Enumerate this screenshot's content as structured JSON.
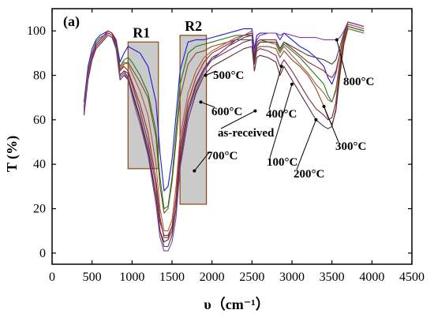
{
  "chart_data": {
    "type": "line",
    "panel_label": "(a)",
    "xlabel": "υ（cm⁻¹）",
    "ylabel": "T (%)",
    "xlim": [
      0,
      4500
    ],
    "ylim": [
      -5,
      110
    ],
    "xticks": [
      0,
      500,
      1000,
      1500,
      2000,
      2500,
      3000,
      3500,
      4000,
      4500
    ],
    "yticks": [
      0,
      20,
      40,
      60,
      80,
      100
    ],
    "grid": false,
    "regions": [
      {
        "label": "R1",
        "x": [
          950,
          1330
        ],
        "y": [
          38,
          95
        ]
      },
      {
        "label": "R2",
        "x": [
          1600,
          1930
        ],
        "y": [
          22,
          98
        ]
      }
    ],
    "series": [
      {
        "name": "as-received",
        "color": "#1b1bd6",
        "x": [
          400,
          450,
          500,
          550,
          600,
          650,
          700,
          750,
          800,
          850,
          900,
          950,
          1000,
          1050,
          1100,
          1200,
          1300,
          1350,
          1400,
          1450,
          1500,
          1550,
          1600,
          1700,
          1800,
          1900,
          2000,
          2100,
          2200,
          2300,
          2400,
          2500,
          2530,
          2560,
          2600,
          2700,
          2800,
          2850,
          2900,
          3000,
          3100,
          3200,
          3300,
          3400,
          3450,
          3500,
          3550,
          3600,
          3650,
          3700,
          3800,
          3900
        ],
        "y": [
          68,
          84,
          92,
          96,
          98,
          99,
          100,
          99,
          96,
          86,
          90,
          93,
          92,
          91,
          90,
          84,
          68,
          45,
          28,
          30,
          42,
          62,
          82,
          95,
          96,
          96,
          97,
          98,
          99,
          100,
          101,
          101,
          92,
          98,
          99,
          99,
          99,
          96,
          99,
          96,
          93,
          91,
          88,
          84,
          79,
          76,
          81,
          90,
          98,
          102,
          101,
          100
        ]
      },
      {
        "name": "100°C",
        "color": "#8a4a1e",
        "x": [
          400,
          450,
          500,
          550,
          600,
          650,
          700,
          750,
          800,
          850,
          900,
          950,
          1000,
          1050,
          1100,
          1200,
          1300,
          1350,
          1400,
          1450,
          1500,
          1550,
          1600,
          1700,
          1800,
          1900,
          2000,
          2100,
          2200,
          2300,
          2400,
          2500,
          2530,
          2560,
          2600,
          2700,
          2800,
          2850,
          2900,
          3000,
          3100,
          3200,
          3300,
          3400,
          3450,
          3500,
          3550,
          3600,
          3650,
          3700,
          3800,
          3900
        ],
        "y": [
          64,
          80,
          89,
          93,
          95,
          97,
          99,
          98,
          94,
          82,
          85,
          86,
          83,
          80,
          77,
          70,
          52,
          30,
          18,
          20,
          32,
          50,
          70,
          85,
          90,
          91,
          93,
          94,
          95,
          96,
          96,
          96,
          86,
          92,
          93,
          93,
          92,
          88,
          91,
          87,
          84,
          80,
          74,
          66,
          61,
          58,
          64,
          80,
          94,
          101,
          100,
          99
        ]
      },
      {
        "name": "200°C",
        "color": "#5a2e2e",
        "x": [
          400,
          450,
          500,
          550,
          600,
          650,
          700,
          750,
          800,
          850,
          900,
          950,
          1000,
          1050,
          1100,
          1200,
          1300,
          1350,
          1400,
          1450,
          1500,
          1550,
          1600,
          1700,
          1800,
          1900,
          2000,
          2100,
          2200,
          2300,
          2400,
          2500,
          2530,
          2560,
          2600,
          2700,
          2800,
          2850,
          2900,
          3000,
          3100,
          3200,
          3300,
          3400,
          3450,
          3500,
          3550,
          3600,
          3650,
          3700,
          3800,
          3900
        ],
        "y": [
          62,
          78,
          87,
          92,
          94,
          96,
          98,
          97,
          92,
          78,
          80,
          78,
          72,
          66,
          60,
          45,
          25,
          10,
          5,
          6,
          10,
          20,
          40,
          60,
          72,
          80,
          84,
          86,
          88,
          90,
          92,
          93,
          82,
          88,
          89,
          88,
          86,
          80,
          84,
          78,
          72,
          66,
          60,
          57,
          56,
          57,
          65,
          82,
          95,
          102,
          101,
          100
        ]
      },
      {
        "name": "300°C",
        "color": "#7a2a4a",
        "x": [
          400,
          450,
          500,
          550,
          600,
          650,
          700,
          750,
          800,
          850,
          900,
          950,
          1000,
          1050,
          1100,
          1200,
          1300,
          1350,
          1400,
          1450,
          1500,
          1550,
          1600,
          1700,
          1800,
          1900,
          2000,
          2100,
          2200,
          2300,
          2400,
          2500,
          2530,
          2560,
          2600,
          2700,
          2800,
          2850,
          2900,
          3000,
          3100,
          3200,
          3300,
          3400,
          3450,
          3500,
          3550,
          3600,
          3650,
          3700,
          3800,
          3900
        ],
        "y": [
          63,
          79,
          88,
          93,
          95,
          97,
          99,
          98,
          93,
          80,
          82,
          81,
          76,
          70,
          64,
          50,
          30,
          14,
          8,
          8,
          12,
          24,
          45,
          65,
          76,
          83,
          87,
          89,
          91,
          93,
          95,
          96,
          85,
          91,
          92,
          91,
          89,
          84,
          87,
          82,
          76,
          70,
          65,
          62,
          60,
          61,
          68,
          84,
          96,
          103,
          102,
          101
        ]
      },
      {
        "name": "400°C",
        "color": "#1f7a1f",
        "x": [
          400,
          450,
          500,
          550,
          600,
          650,
          700,
          750,
          800,
          850,
          900,
          950,
          1000,
          1050,
          1100,
          1200,
          1300,
          1350,
          1400,
          1450,
          1500,
          1550,
          1600,
          1700,
          1800,
          1900,
          2000,
          2100,
          2200,
          2300,
          2400,
          2500,
          2530,
          2560,
          2600,
          2700,
          2800,
          2850,
          2900,
          3000,
          3100,
          3200,
          3300,
          3400,
          3450,
          3500,
          3550,
          3600,
          3650,
          3700,
          3800,
          3900
        ],
        "y": [
          66,
          82,
          90,
          95,
          97,
          98,
          100,
          99,
          95,
          84,
          87,
          88,
          86,
          83,
          80,
          72,
          55,
          34,
          20,
          21,
          34,
          55,
          76,
          90,
          93,
          94,
          95,
          96,
          97,
          98,
          98,
          98,
          89,
          95,
          96,
          95,
          94,
          91,
          94,
          91,
          88,
          84,
          80,
          76,
          71,
          68,
          73,
          86,
          97,
          102,
          101,
          100
        ]
      },
      {
        "name": "500°C",
        "color": "#a06040",
        "x": [
          400,
          450,
          500,
          550,
          600,
          650,
          700,
          750,
          800,
          850,
          900,
          950,
          1000,
          1050,
          1100,
          1200,
          1300,
          1350,
          1400,
          1450,
          1500,
          1550,
          1600,
          1700,
          1800,
          1900,
          2000,
          2100,
          2200,
          2300,
          2400,
          2500,
          2530,
          2560,
          2600,
          2700,
          2800,
          2850,
          2900,
          3000,
          3100,
          3200,
          3300,
          3400,
          3450,
          3500,
          3550,
          3600,
          3650,
          3700,
          3800,
          3900
        ],
        "y": [
          65,
          81,
          90,
          94,
          96,
          98,
          99,
          98,
          94,
          83,
          86,
          85,
          81,
          77,
          73,
          62,
          40,
          20,
          10,
          10,
          15,
          30,
          52,
          72,
          82,
          88,
          91,
          93,
          95,
          97,
          98,
          99,
          88,
          94,
          95,
          95,
          94,
          90,
          93,
          89,
          85,
          81,
          76,
          72,
          69,
          68,
          74,
          87,
          97,
          103,
          102,
          101
        ]
      },
      {
        "name": "600°C",
        "color": "#b02020",
        "x": [
          400,
          450,
          500,
          550,
          600,
          650,
          700,
          750,
          800,
          850,
          900,
          950,
          1000,
          1050,
          1100,
          1200,
          1300,
          1350,
          1400,
          1450,
          1500,
          1550,
          1600,
          1700,
          1800,
          1900,
          2000,
          2100,
          2200,
          2300,
          2400,
          2500,
          2530,
          2560,
          2600,
          2700,
          2800,
          2850,
          2900,
          3000,
          3100,
          3200,
          3300,
          3400,
          3450,
          3500,
          3550,
          3600,
          3650,
          3700,
          3800,
          3900
        ],
        "y": [
          64,
          80,
          89,
          94,
          96,
          98,
          100,
          99,
          95,
          82,
          84,
          82,
          77,
          72,
          67,
          54,
          33,
          16,
          7,
          7,
          12,
          25,
          48,
          68,
          79,
          86,
          90,
          92,
          94,
          96,
          98,
          99,
          89,
          95,
          96,
          96,
          96,
          92,
          95,
          92,
          89,
          86,
          84,
          82,
          80,
          79,
          82,
          90,
          98,
          104,
          103,
          102
        ]
      },
      {
        "name": "700°C",
        "color": "#404040",
        "x": [
          400,
          450,
          500,
          550,
          600,
          650,
          700,
          750,
          800,
          850,
          900,
          950,
          1000,
          1050,
          1100,
          1200,
          1300,
          1350,
          1400,
          1450,
          1500,
          1550,
          1600,
          1700,
          1800,
          1900,
          2000,
          2100,
          2200,
          2300,
          2400,
          2500,
          2530,
          2560,
          2600,
          2700,
          2800,
          2850,
          2900,
          3000,
          3100,
          3200,
          3300,
          3400,
          3450,
          3500,
          3550,
          3600,
          3650,
          3700,
          3800,
          3900
        ],
        "y": [
          63,
          79,
          88,
          93,
          95,
          97,
          99,
          98,
          94,
          80,
          82,
          79,
          73,
          67,
          61,
          47,
          26,
          10,
          3,
          3,
          8,
          20,
          42,
          63,
          75,
          83,
          88,
          90,
          93,
          95,
          97,
          98,
          87,
          93,
          95,
          95,
          95,
          92,
          95,
          93,
          91,
          89,
          88,
          87,
          86,
          85,
          87,
          93,
          99,
          104,
          103,
          102
        ]
      },
      {
        "name": "800°C",
        "color": "#8a3aa8",
        "x": [
          400,
          450,
          500,
          550,
          600,
          650,
          700,
          750,
          800,
          850,
          900,
          950,
          1000,
          1050,
          1100,
          1200,
          1300,
          1350,
          1400,
          1450,
          1500,
          1550,
          1600,
          1700,
          1800,
          1900,
          2000,
          2100,
          2200,
          2300,
          2400,
          2500,
          2530,
          2560,
          2600,
          2700,
          2800,
          2850,
          2900,
          3000,
          3100,
          3200,
          3300,
          3400,
          3450,
          3500,
          3550,
          3600,
          3650,
          3700,
          3800,
          3900
        ],
        "y": [
          63,
          79,
          88,
          93,
          95,
          97,
          99,
          98,
          93,
          79,
          81,
          78,
          71,
          64,
          58,
          44,
          22,
          7,
          1,
          1,
          5,
          16,
          38,
          60,
          73,
          82,
          87,
          90,
          93,
          96,
          98,
          100,
          90,
          96,
          98,
          99,
          99,
          98,
          99,
          98,
          97,
          97,
          97,
          96,
          96,
          96,
          96,
          97,
          100,
          104,
          103,
          102
        ]
      }
    ],
    "annotations": [
      {
        "text": "500°C",
        "arrow_to": [
          1920,
          80
        ]
      },
      {
        "text": "600°C",
        "arrow_to": [
          1860,
          68
        ]
      },
      {
        "text": "as-received",
        "arrow_to": [
          2540,
          64
        ]
      },
      {
        "text": "700°C",
        "arrow_to": [
          1780,
          37
        ]
      },
      {
        "text": "400°C",
        "arrow_to": [
          2870,
          84
        ]
      },
      {
        "text": "100°C",
        "arrow_to": [
          3000,
          76
        ]
      },
      {
        "text": "200°C",
        "arrow_to": [
          3300,
          60
        ]
      },
      {
        "text": "300°C",
        "arrow_to": [
          3400,
          66
        ]
      },
      {
        "text": "800°C",
        "arrow_to": [
          3560,
          96
        ]
      }
    ]
  }
}
